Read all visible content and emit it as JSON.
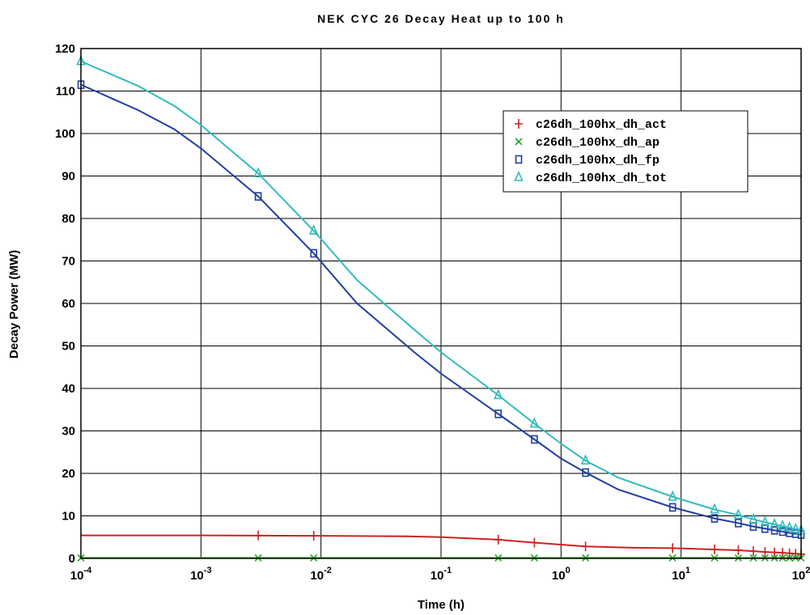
{
  "chart_data": {
    "type": "line",
    "title": "NEK CYC 26 Decay Heat up to 100 h",
    "xlabel": "Time (h)",
    "ylabel": "Decay Power (MW)",
    "xscale": "log",
    "xlim": [
      0.0001,
      100
    ],
    "ylim": [
      0,
      120
    ],
    "grid": true,
    "legend_position": "top-right",
    "x_ticks": [
      {
        "value": 0.0001,
        "base": "10",
        "exp": "-4"
      },
      {
        "value": 0.001,
        "base": "10",
        "exp": "-3"
      },
      {
        "value": 0.01,
        "base": "10",
        "exp": "-2"
      },
      {
        "value": 0.1,
        "base": "10",
        "exp": "-1"
      },
      {
        "value": 1,
        "base": "10",
        "exp": "0"
      },
      {
        "value": 10,
        "base": "10",
        "exp": "1"
      },
      {
        "value": 100,
        "base": "10",
        "exp": "2"
      }
    ],
    "y_ticks": [
      "0",
      "10",
      "20",
      "30",
      "40",
      "50",
      "60",
      "70",
      "80",
      "90",
      "100",
      "110",
      "120"
    ],
    "series": [
      {
        "name": "c26dh_100hx_dh_act",
        "color": "#cc2222",
        "marker": "+",
        "line": [
          [
            0.0001,
            5.4
          ],
          [
            0.001,
            5.4
          ],
          [
            0.01,
            5.3
          ],
          [
            0.05,
            5.2
          ],
          [
            0.1,
            5.0
          ],
          [
            0.3,
            4.4
          ],
          [
            0.6,
            3.7
          ],
          [
            1.6,
            2.8
          ],
          [
            4,
            2.5
          ],
          [
            8.5,
            2.4
          ],
          [
            19,
            2.1
          ],
          [
            30,
            1.9
          ],
          [
            40,
            1.7
          ],
          [
            50,
            1.5
          ],
          [
            60,
            1.4
          ],
          [
            70,
            1.3
          ],
          [
            80,
            1.2
          ],
          [
            90,
            1.1
          ],
          [
            100,
            1.0
          ]
        ],
        "markers": [
          [
            0.003,
            5.4
          ],
          [
            0.0087,
            5.3
          ],
          [
            0.3,
            4.4
          ],
          [
            0.6,
            3.7
          ],
          [
            1.6,
            2.8
          ],
          [
            8.5,
            2.4
          ],
          [
            19,
            2.1
          ],
          [
            30,
            1.9
          ],
          [
            40,
            1.7
          ],
          [
            50,
            1.5
          ],
          [
            60,
            1.4
          ],
          [
            70,
            1.3
          ],
          [
            80,
            1.2
          ],
          [
            90,
            1.1
          ],
          [
            100,
            1.0
          ]
        ]
      },
      {
        "name": "c26dh_100hx_dh_ap",
        "color": "#22aa22",
        "marker": "x",
        "line": [
          [
            0.0001,
            0.1
          ],
          [
            100,
            0.1
          ]
        ],
        "markers": [
          [
            0.0001,
            0.1
          ],
          [
            0.003,
            0.1
          ],
          [
            0.0087,
            0.1
          ],
          [
            0.3,
            0.1
          ],
          [
            0.6,
            0.1
          ],
          [
            1.6,
            0.1
          ],
          [
            8.5,
            0.1
          ],
          [
            19,
            0.1
          ],
          [
            30,
            0.1
          ],
          [
            40,
            0.1
          ],
          [
            50,
            0.1
          ],
          [
            60,
            0.1
          ],
          [
            70,
            0.1
          ],
          [
            80,
            0.1
          ],
          [
            90,
            0.1
          ],
          [
            100,
            0.1
          ]
        ]
      },
      {
        "name": "c26dh_100hx_dh_fp",
        "color": "#1f3f9f",
        "marker": "square",
        "line": [
          [
            0.0001,
            111.5
          ],
          [
            0.0003,
            105.5
          ],
          [
            0.0006,
            101
          ],
          [
            0.001,
            96.5
          ],
          [
            0.003,
            85.2
          ],
          [
            0.0087,
            71.8
          ],
          [
            0.02,
            60
          ],
          [
            0.06,
            48.5
          ],
          [
            0.1,
            43.5
          ],
          [
            0.3,
            34
          ],
          [
            0.6,
            28
          ],
          [
            1,
            23.5
          ],
          [
            1.6,
            20.2
          ],
          [
            3,
            16.2
          ],
          [
            8.5,
            12
          ],
          [
            19,
            9.4
          ],
          [
            30,
            8.3
          ],
          [
            40,
            7.5
          ],
          [
            50,
            7.0
          ],
          [
            60,
            6.6
          ],
          [
            70,
            6.3
          ],
          [
            80,
            6.0
          ],
          [
            90,
            5.8
          ],
          [
            100,
            5.6
          ]
        ],
        "markers": [
          [
            0.0001,
            111.5
          ],
          [
            0.003,
            85.2
          ],
          [
            0.0087,
            71.8
          ],
          [
            0.3,
            34
          ],
          [
            0.6,
            28
          ],
          [
            1.6,
            20.2
          ],
          [
            8.5,
            12
          ],
          [
            19,
            9.4
          ],
          [
            30,
            8.3
          ],
          [
            40,
            7.5
          ],
          [
            50,
            7.0
          ],
          [
            60,
            6.6
          ],
          [
            70,
            6.3
          ],
          [
            80,
            6.0
          ],
          [
            90,
            5.8
          ],
          [
            100,
            5.6
          ]
        ]
      },
      {
        "name": "c26dh_100hx_dh_tot",
        "color": "#33bbbb",
        "marker": "triangle",
        "line": [
          [
            0.0001,
            117
          ],
          [
            0.0003,
            111.2
          ],
          [
            0.0006,
            106.5
          ],
          [
            0.001,
            102
          ],
          [
            0.003,
            90.6
          ],
          [
            0.0087,
            77.1
          ],
          [
            0.02,
            65.5
          ],
          [
            0.06,
            53.8
          ],
          [
            0.1,
            48.5
          ],
          [
            0.3,
            38.4
          ],
          [
            0.6,
            31.7
          ],
          [
            1,
            27
          ],
          [
            1.6,
            23
          ],
          [
            3,
            19
          ],
          [
            8.5,
            14.5
          ],
          [
            19,
            11.5
          ],
          [
            30,
            10.2
          ],
          [
            40,
            9.2
          ],
          [
            50,
            8.5
          ],
          [
            60,
            8.0
          ],
          [
            70,
            7.6
          ],
          [
            80,
            7.2
          ],
          [
            90,
            6.9
          ],
          [
            100,
            6.6
          ]
        ],
        "markers": [
          [
            0.0001,
            117
          ],
          [
            0.003,
            90.6
          ],
          [
            0.0087,
            77.1
          ],
          [
            0.3,
            38.4
          ],
          [
            0.6,
            31.7
          ],
          [
            1.6,
            23
          ],
          [
            8.5,
            14.5
          ],
          [
            19,
            11.5
          ],
          [
            30,
            10.2
          ],
          [
            40,
            9.2
          ],
          [
            50,
            8.5
          ],
          [
            60,
            8.0
          ],
          [
            70,
            7.6
          ],
          [
            80,
            7.2
          ],
          [
            90,
            6.9
          ],
          [
            100,
            6.6
          ]
        ]
      }
    ]
  }
}
